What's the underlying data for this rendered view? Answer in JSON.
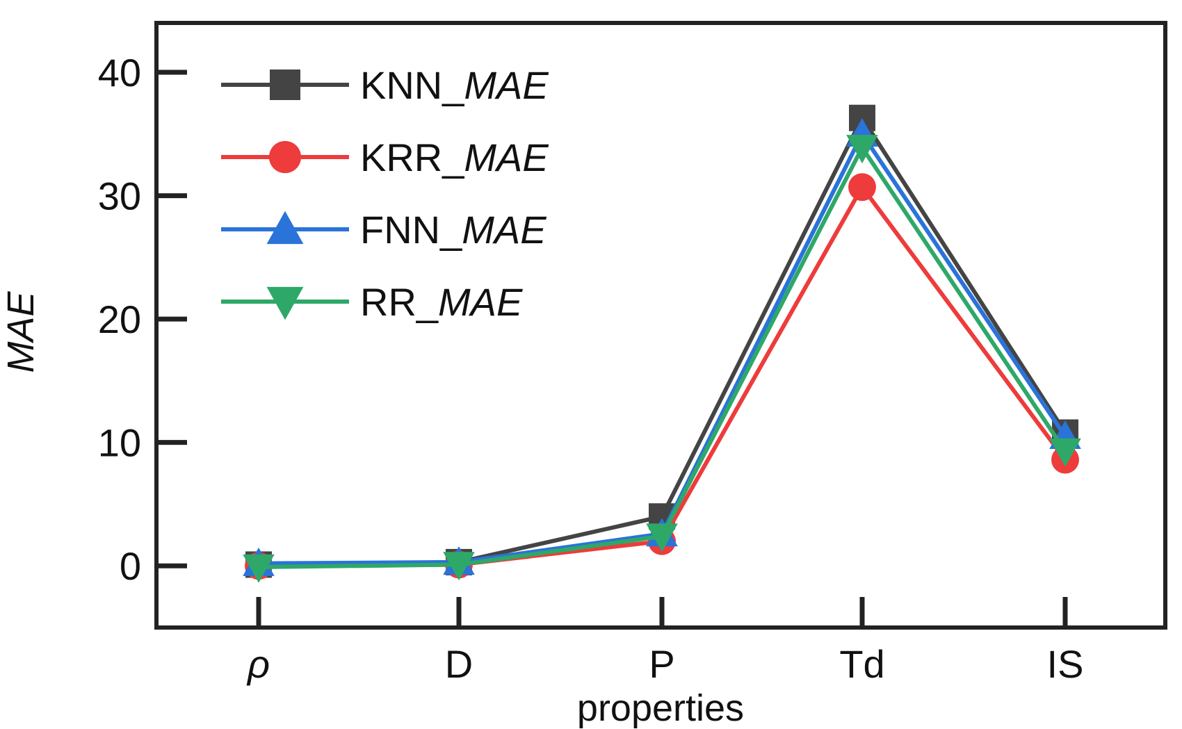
{
  "chart_data": {
    "type": "line",
    "categories": [
      "ρ",
      "D",
      "P",
      "Td",
      "IS"
    ],
    "xlabel": "properties",
    "ylabel": "MAE",
    "ylim": [
      -5,
      44
    ],
    "yticks": [
      0,
      10,
      20,
      30,
      40
    ],
    "grid": false,
    "legend_position": "top-left",
    "series": [
      {
        "name": "KNN_MAE",
        "name_prefix": "KNN_",
        "name_suffix": "MAE",
        "color": "#444444",
        "marker": "square",
        "values": [
          0.1,
          0.3,
          4.0,
          36.3,
          10.8
        ]
      },
      {
        "name": "KRR_MAE",
        "name_prefix": "KRR_",
        "name_suffix": "MAE",
        "color": "#ee3b3b",
        "marker": "circle",
        "values": [
          0.0,
          0.1,
          2.0,
          30.7,
          8.6
        ]
      },
      {
        "name": "FNN_MAE",
        "name_prefix": "FNN_",
        "name_suffix": "MAE",
        "color": "#2a73d9",
        "marker": "triangle-up",
        "values": [
          0.2,
          0.3,
          2.6,
          35.0,
          10.5
        ]
      },
      {
        "name": "RR_MAE",
        "name_prefix": "RR_",
        "name_suffix": "MAE",
        "color": "#2ea868",
        "marker": "triangle-down",
        "values": [
          -0.1,
          0.1,
          2.4,
          33.9,
          9.3
        ]
      }
    ]
  }
}
